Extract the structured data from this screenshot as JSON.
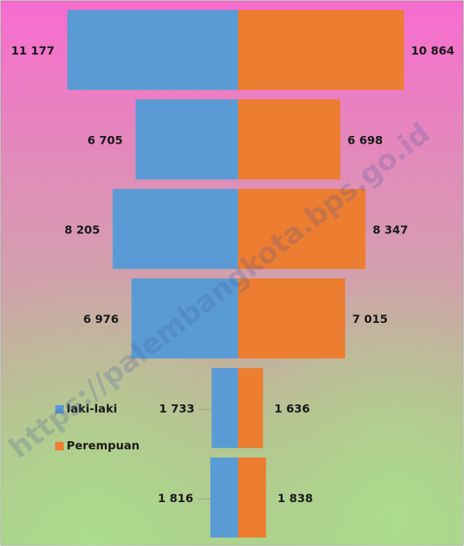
{
  "chart_data": {
    "type": "pyramid",
    "watermark": "https://palembangkota.bps.go.id",
    "legend": "lower-left",
    "series": [
      {
        "name": "laki-laki",
        "color": "#5b9bd5",
        "values": [
          11177,
          6705,
          8205,
          6976,
          1733,
          1816
        ],
        "value_labels": [
          "11 177",
          "6 705",
          "8 205",
          "6 976",
          "1 733",
          "1 816"
        ]
      },
      {
        "name": "Perempuan",
        "color": "#ed7d31",
        "values": [
          10864,
          6698,
          8347,
          7015,
          1636,
          1838
        ],
        "value_labels": [
          "10 864",
          "6 698",
          "8 347",
          "7 015",
          "1 636",
          "1 838"
        ]
      }
    ]
  }
}
